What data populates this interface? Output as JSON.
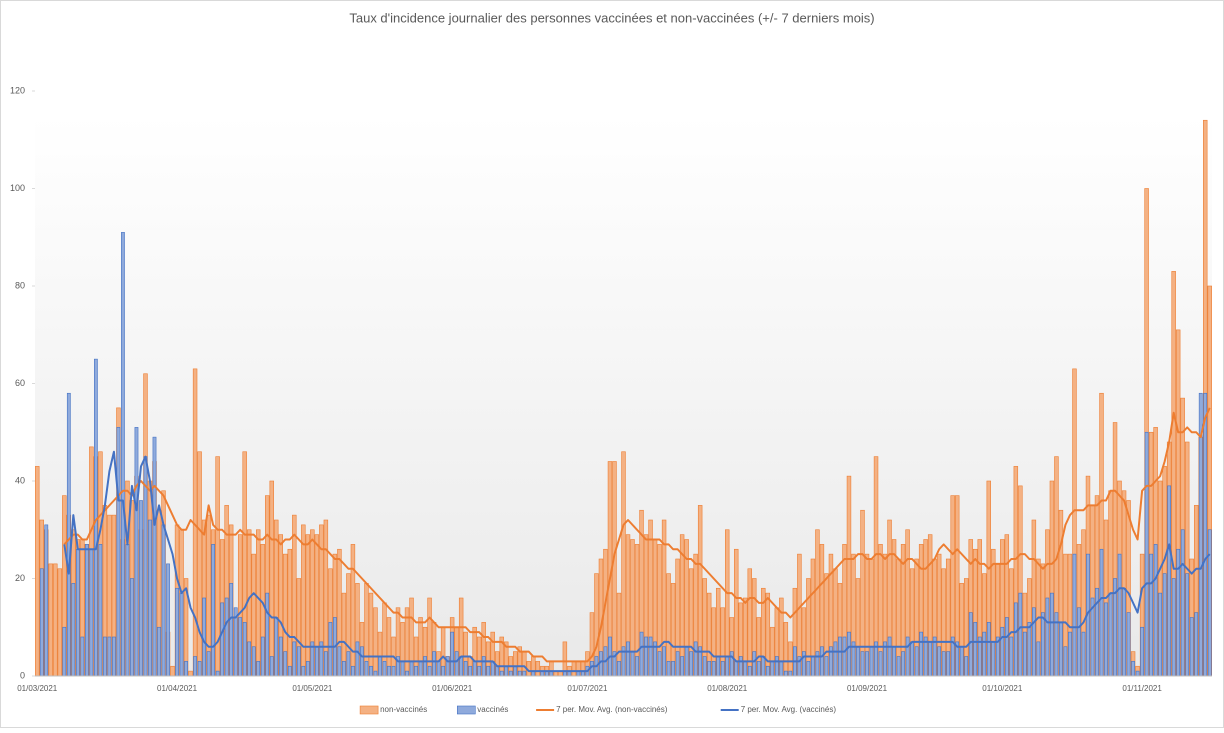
{
  "chart_data": {
    "type": "bar",
    "title": "Taux d'incidence journalier des personnes vaccinées et non-vaccinées (+/- 7 derniers mois)",
    "categories": [
      "01/03/2021",
      null,
      null,
      null,
      null,
      null,
      null,
      null,
      null,
      null,
      null,
      null,
      null,
      null,
      null,
      null,
      null,
      null,
      null,
      null,
      null,
      null,
      null,
      null,
      null,
      null,
      null,
      null,
      null,
      null,
      null,
      "01/04/2021",
      null,
      null,
      null,
      null,
      null,
      null,
      null,
      null,
      null,
      null,
      null,
      null,
      null,
      null,
      null,
      null,
      null,
      null,
      null,
      null,
      null,
      null,
      null,
      null,
      null,
      null,
      null,
      null,
      null,
      "01/05/2021",
      null,
      null,
      null,
      null,
      null,
      null,
      null,
      null,
      null,
      null,
      null,
      null,
      null,
      null,
      null,
      null,
      null,
      null,
      null,
      null,
      null,
      null,
      null,
      null,
      null,
      null,
      null,
      null,
      null,
      null,
      "01/06/2021",
      null,
      null,
      null,
      null,
      null,
      null,
      null,
      null,
      null,
      null,
      null,
      null,
      null,
      null,
      null,
      null,
      null,
      null,
      null,
      null,
      null,
      null,
      null,
      null,
      null,
      null,
      null,
      null,
      null,
      "01/07/2021",
      null,
      null,
      null,
      null,
      null,
      null,
      null,
      null,
      null,
      null,
      null,
      null,
      null,
      null,
      null,
      null,
      null,
      null,
      null,
      null,
      null,
      null,
      null,
      null,
      null,
      null,
      null,
      null,
      null,
      null,
      "01/08/2021",
      null,
      null,
      null,
      null,
      null,
      null,
      null,
      null,
      null,
      null,
      null,
      null,
      null,
      null,
      null,
      null,
      null,
      null,
      null,
      null,
      null,
      null,
      null,
      null,
      null,
      null,
      null,
      null,
      null,
      null,
      "01/09/2021",
      null,
      null,
      null,
      null,
      null,
      null,
      null,
      null,
      null,
      null,
      null,
      null,
      null,
      null,
      null,
      null,
      null,
      null,
      null,
      null,
      null,
      null,
      null,
      null,
      null,
      null,
      null,
      null,
      null,
      "01/10/2021",
      null,
      null,
      null,
      null,
      null,
      null,
      null,
      null,
      null,
      null,
      null,
      null,
      null,
      null,
      null,
      null,
      null,
      null,
      null,
      null,
      null,
      null,
      null,
      null,
      null,
      null,
      null,
      null,
      null,
      null,
      "01/11/2021",
      null,
      null,
      null,
      null,
      null,
      null,
      null,
      null,
      null,
      null,
      null,
      null,
      null,
      null,
      null
    ],
    "series": [
      {
        "name": "non-vaccinés",
        "type": "bar",
        "color": "#f4b183",
        "edge": "#ed7d31",
        "values": [
          43,
          32,
          30,
          23,
          23,
          22,
          37,
          33,
          30,
          28,
          28,
          27,
          47,
          45,
          46,
          35,
          33,
          33,
          55,
          28,
          40,
          36,
          41,
          30,
          62,
          40,
          44,
          34,
          38,
          9,
          2,
          31,
          30,
          20,
          1,
          63,
          46,
          32,
          33,
          30,
          45,
          28,
          35,
          31,
          12,
          29,
          46,
          30,
          25,
          30,
          27,
          37,
          40,
          32,
          29,
          25,
          26,
          33,
          20,
          31,
          29,
          30,
          29,
          31,
          32,
          22,
          25,
          26,
          17,
          21,
          27,
          19,
          11,
          19,
          17,
          14,
          9,
          15,
          12,
          8,
          14,
          11,
          14,
          16,
          8,
          12,
          10,
          16,
          11,
          5,
          10,
          4,
          12,
          10,
          16,
          9,
          4,
          10,
          8,
          11,
          7,
          9,
          5,
          8,
          7,
          4,
          5,
          6,
          5,
          3,
          4,
          3,
          2,
          2,
          3,
          1,
          1,
          7,
          2,
          3,
          3,
          3,
          5,
          13,
          21,
          24,
          26,
          44,
          44,
          17,
          46,
          29,
          28,
          27,
          34,
          29,
          32,
          28,
          27,
          32,
          21,
          19,
          24,
          29,
          28,
          22,
          25,
          35,
          20,
          17,
          14,
          18,
          14,
          30,
          12,
          26,
          15,
          16,
          22,
          20,
          12,
          18,
          17,
          10,
          14,
          16,
          11,
          7,
          18,
          25,
          14,
          20,
          24,
          30,
          27,
          21,
          25,
          22,
          19,
          27,
          41,
          25,
          20,
          34,
          25,
          24,
          45,
          27,
          25,
          32,
          28,
          24,
          27,
          30,
          22,
          24,
          27,
          28,
          29,
          24,
          25,
          22,
          24,
          37,
          37,
          19,
          20,
          28,
          26,
          28,
          21,
          40,
          26,
          23,
          28,
          29,
          22,
          43,
          39,
          17,
          20,
          32,
          24,
          23,
          30,
          40,
          45,
          34,
          25,
          25,
          63,
          27,
          30,
          41,
          35,
          37,
          58,
          32,
          38,
          52,
          40,
          38,
          36,
          5,
          2,
          25,
          100,
          50,
          51,
          40,
          43,
          48,
          83,
          71,
          57,
          48,
          24,
          35,
          49,
          114,
          80
        ]
      },
      {
        "name": "vaccinés",
        "type": "bar",
        "color": "#8faadc",
        "edge": "#4472c4",
        "values": [
          0,
          22,
          31,
          0,
          0,
          0,
          10,
          58,
          19,
          26,
          8,
          27,
          26,
          65,
          27,
          8,
          8,
          8,
          51,
          91,
          27,
          20,
          51,
          36,
          45,
          32,
          49,
          10,
          31,
          23,
          0,
          18,
          17,
          3,
          0,
          4,
          3,
          16,
          5,
          27,
          1,
          15,
          16,
          19,
          14,
          12,
          11,
          7,
          6,
          3,
          8,
          17,
          4,
          12,
          8,
          5,
          2,
          7,
          6,
          2,
          3,
          7,
          6,
          7,
          5,
          11,
          12,
          6,
          3,
          5,
          2,
          7,
          6,
          3,
          2,
          1,
          4,
          3,
          2,
          2,
          4,
          3,
          1,
          3,
          2,
          3,
          4,
          2,
          5,
          3,
          2,
          4,
          9,
          5,
          4,
          3,
          2,
          3,
          2,
          4,
          2,
          3,
          2,
          1,
          2,
          1,
          2,
          1,
          1,
          0,
          1,
          0,
          1,
          1,
          1,
          0,
          0,
          1,
          1,
          0,
          1,
          1,
          2,
          3,
          4,
          5,
          6,
          8,
          5,
          3,
          6,
          7,
          5,
          4,
          9,
          8,
          8,
          7,
          5,
          6,
          3,
          3,
          5,
          4,
          6,
          5,
          7,
          6,
          4,
          3,
          3,
          4,
          3,
          4,
          5,
          3,
          4,
          3,
          2,
          5,
          3,
          4,
          2,
          3,
          4,
          3,
          1,
          1,
          6,
          4,
          5,
          3,
          4,
          5,
          6,
          4,
          6,
          7,
          8,
          8,
          9,
          7,
          6,
          5,
          5,
          6,
          7,
          5,
          7,
          8,
          6,
          4,
          5,
          8,
          7,
          6,
          9,
          8,
          7,
          8,
          6,
          5,
          5,
          8,
          7,
          6,
          4,
          13,
          11,
          8,
          9,
          11,
          7,
          8,
          10,
          12,
          8,
          15,
          17,
          9,
          11,
          14,
          7,
          13,
          16,
          17,
          13,
          11,
          6,
          9,
          25,
          14,
          9,
          25,
          16,
          18,
          26,
          15,
          17,
          20,
          25,
          18,
          13,
          3,
          1,
          10,
          50,
          25,
          27,
          17,
          21,
          39,
          20,
          26,
          30,
          21,
          12,
          13,
          58,
          58,
          30
        ]
      },
      {
        "name": "7 per. Mov. Avg. (non-vaccinés)",
        "type": "line",
        "color": "#ed7d31",
        "values": [
          null,
          null,
          null,
          null,
          null,
          null,
          27,
          28,
          29,
          29,
          28,
          28,
          30,
          32,
          33,
          34,
          35,
          36,
          37,
          38,
          38,
          37,
          39,
          40,
          39,
          38,
          39,
          38,
          37,
          35,
          33,
          31,
          30,
          30,
          32,
          31,
          30,
          29,
          35,
          31,
          30,
          30,
          29,
          29,
          29,
          30,
          29,
          29,
          29,
          28,
          28,
          29,
          28,
          28,
          27,
          28,
          28,
          29,
          28,
          27,
          27,
          28,
          27,
          26,
          26,
          25,
          24,
          24,
          23,
          22,
          22,
          21,
          20,
          19,
          18,
          17,
          16,
          15,
          14,
          13,
          13,
          12,
          12,
          12,
          11,
          11,
          11,
          12,
          11,
          10,
          10,
          10,
          10,
          10,
          10,
          10,
          9,
          9,
          9,
          8,
          8,
          7,
          7,
          7,
          6,
          6,
          6,
          5,
          5,
          5,
          4,
          4,
          4,
          3,
          3,
          3,
          3,
          3,
          3,
          3,
          3,
          3,
          3,
          4,
          6,
          10,
          15,
          20,
          25,
          28,
          31,
          32,
          31,
          30,
          29,
          28,
          28,
          28,
          28,
          27,
          27,
          26,
          26,
          25,
          24,
          24,
          23,
          23,
          22,
          21,
          20,
          19,
          18,
          17,
          17,
          16,
          16,
          15,
          16,
          16,
          15,
          15,
          16,
          15,
          14,
          13,
          13,
          12,
          13,
          14,
          15,
          16,
          17,
          18,
          19,
          20,
          21,
          22,
          23,
          24,
          24,
          24,
          25,
          25,
          24,
          24,
          25,
          25,
          24,
          25,
          25,
          24,
          23,
          24,
          24,
          23,
          22,
          22,
          23,
          24,
          26,
          27,
          26,
          25,
          26,
          25,
          24,
          23,
          24,
          23,
          23,
          22,
          23,
          23,
          23,
          23,
          24,
          24,
          25,
          25,
          24,
          24,
          23,
          22,
          23,
          23,
          24,
          27,
          31,
          33,
          34,
          34,
          34,
          35,
          35,
          35,
          36,
          36,
          38,
          38,
          37,
          36,
          33,
          30,
          28,
          38,
          39,
          39,
          40,
          41,
          44,
          48,
          54,
          50,
          50,
          51,
          50,
          50,
          49,
          53,
          55
        ]
      },
      {
        "name": "7 per. Mov. Avg. (vaccinés)",
        "type": "line",
        "color": "#4472c4",
        "values": [
          null,
          null,
          null,
          null,
          null,
          null,
          27,
          21,
          33,
          26,
          26,
          26,
          26,
          26,
          30,
          35,
          42,
          46,
          36,
          36,
          27,
          39,
          34,
          43,
          45,
          40,
          31,
          35,
          31,
          28,
          25,
          20,
          17,
          18,
          14,
          12,
          9,
          7,
          6,
          6,
          7,
          9,
          11,
          12,
          12,
          13,
          14,
          16,
          17,
          16,
          15,
          13,
          12,
          12,
          11,
          9,
          8,
          8,
          7,
          6,
          6,
          6,
          6,
          6,
          6,
          6,
          6,
          7,
          7,
          6,
          5,
          5,
          4,
          4,
          4,
          4,
          4,
          4,
          4,
          4,
          3,
          3,
          3,
          3,
          3,
          3,
          3,
          3,
          3,
          3,
          4,
          3,
          3,
          3,
          4,
          4,
          4,
          3,
          3,
          3,
          3,
          3,
          2,
          2,
          2,
          2,
          2,
          2,
          2,
          1,
          1,
          1,
          1,
          1,
          1,
          1,
          1,
          1,
          1,
          1,
          1,
          1,
          1,
          2,
          2,
          3,
          3,
          4,
          4,
          5,
          5,
          5,
          5,
          5,
          6,
          6,
          6,
          6,
          6,
          7,
          7,
          6,
          6,
          6,
          6,
          6,
          5,
          5,
          5,
          5,
          4,
          4,
          4,
          4,
          4,
          3,
          3,
          3,
          3,
          3,
          4,
          4,
          3,
          3,
          3,
          3,
          3,
          3,
          3,
          3,
          4,
          4,
          4,
          4,
          4,
          5,
          5,
          5,
          5,
          5,
          6,
          6,
          6,
          6,
          6,
          6,
          6,
          6,
          6,
          6,
          6,
          6,
          6,
          6,
          7,
          7,
          7,
          7,
          7,
          7,
          7,
          7,
          7,
          7,
          6,
          6,
          6,
          7,
          7,
          7,
          7,
          7,
          7,
          7,
          8,
          8,
          9,
          9,
          10,
          10,
          10,
          11,
          12,
          12,
          11,
          11,
          11,
          11,
          11,
          10,
          10,
          10,
          11,
          13,
          14,
          15,
          16,
          16,
          17,
          17,
          18,
          18,
          17,
          15,
          13,
          18,
          19,
          19,
          20,
          22,
          24,
          27,
          22,
          22,
          23,
          22,
          21,
          22,
          22,
          24,
          25
        ]
      }
    ],
    "ylim": [
      0,
      120
    ],
    "yticks": [
      0,
      20,
      40,
      60,
      80,
      100,
      120
    ],
    "grid": false,
    "legend": "bottom"
  }
}
